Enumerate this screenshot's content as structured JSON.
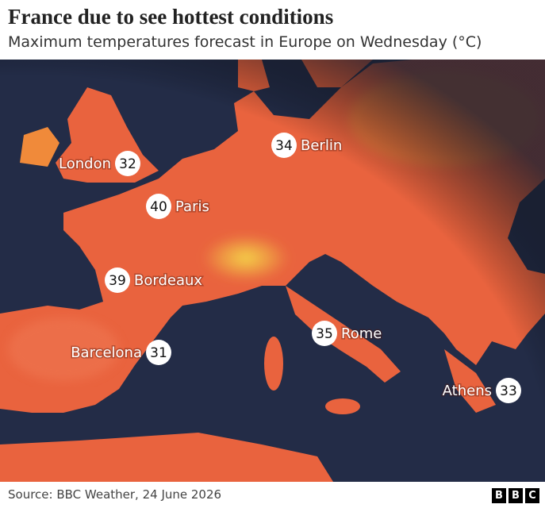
{
  "header": {
    "title": "France due to see hottest conditions",
    "subtitle": "Maximum temperatures forecast in Europe on Wednesday (°C)"
  },
  "cities": [
    {
      "name": "London",
      "temperature": "32"
    },
    {
      "name": "Berlin",
      "temperature": "34"
    },
    {
      "name": "Paris",
      "temperature": "40"
    },
    {
      "name": "Bordeaux",
      "temperature": "39"
    },
    {
      "name": "Barcelona",
      "temperature": "31"
    },
    {
      "name": "Rome",
      "temperature": "35"
    },
    {
      "name": "Athens",
      "temperature": "33"
    }
  ],
  "footer": {
    "source": "Source: BBC Weather, 24 June 2026",
    "logo": [
      "B",
      "B",
      "C"
    ]
  }
}
